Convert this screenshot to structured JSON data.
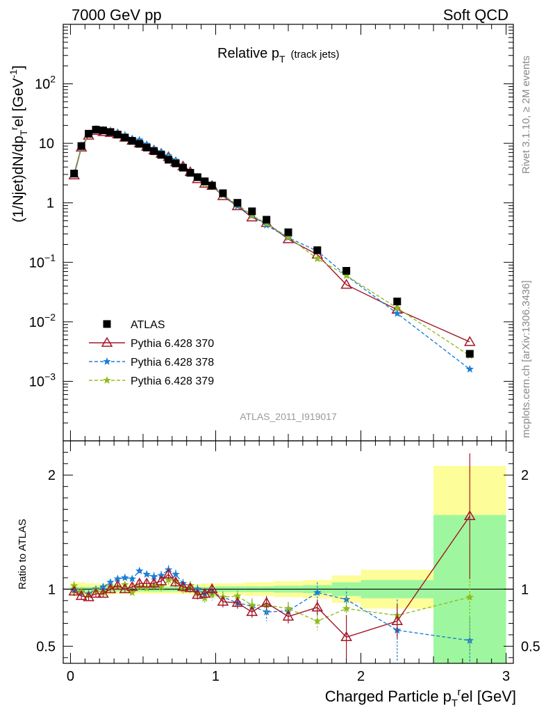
{
  "header": {
    "left": "7000 GeV pp",
    "right": "Soft QCD"
  },
  "side_labels": {
    "rivet": "Rivet 3.1.10, ≥ 2M events",
    "mcplots": "mcplots.cern.ch [arXiv:1306.3436]"
  },
  "analysis_id": "ATLAS_2011_I919017",
  "colors": {
    "atlas": "#000000",
    "p370": "#a31526",
    "p378": "#1c7fd6",
    "p379": "#8fbd1d",
    "band_stat": "#9ef79e",
    "band_tot": "#fdfd99",
    "unity_line": "#000000"
  },
  "chart_data": [
    {
      "type": "scatter",
      "panel": "main",
      "title": "Relative p_T (track jets)",
      "title_main": "Relative p",
      "title_sub": "T",
      "title_note": "(track jets)",
      "ylabel": "(1/Njet)dN/dp_T^rel [GeV^-1]",
      "ylabel_parts": {
        "a": "(1/Njet)dN/dp",
        "b": "T",
        "c": "r",
        "d": "el [GeV",
        "e": "-1",
        "f": "]"
      },
      "yscale": "log",
      "ylim": [
        0.0001,
        1000
      ],
      "xlim": [
        -0.05,
        3.05
      ],
      "ytick_labels": [
        {
          "exp": -3,
          "base": "10",
          "sup": "−3"
        },
        {
          "exp": -2,
          "base": "10",
          "sup": "−2"
        },
        {
          "exp": -1,
          "base": "10",
          "sup": "−1"
        },
        {
          "exp": 0,
          "base": "1",
          "sup": ""
        },
        {
          "exp": 1,
          "base": "10",
          "sup": ""
        },
        {
          "exp": 2,
          "base": "10",
          "sup": "2"
        }
      ],
      "legend_position": "bottom-left",
      "x": [
        0.025,
        0.075,
        0.125,
        0.175,
        0.225,
        0.275,
        0.325,
        0.375,
        0.425,
        0.475,
        0.525,
        0.575,
        0.625,
        0.675,
        0.725,
        0.775,
        0.825,
        0.875,
        0.925,
        0.975,
        1.05,
        1.15,
        1.25,
        1.35,
        1.5,
        1.7,
        1.9,
        2.25,
        2.75
      ],
      "series": [
        {
          "name": "ATLAS",
          "key": "atlas",
          "marker": "square",
          "values": [
            3.1,
            9.0,
            14.5,
            17.0,
            16.5,
            15.5,
            14.0,
            12.5,
            11.0,
            9.8,
            8.5,
            7.4,
            6.4,
            5.3,
            4.6,
            3.9,
            3.2,
            2.7,
            2.3,
            1.95,
            1.45,
            1.0,
            0.72,
            0.52,
            0.32,
            0.16,
            0.072,
            0.022,
            0.0029
          ]
        },
        {
          "name": "Pythia 6.428 370",
          "key": "p370",
          "marker": "triangle",
          "dash": "",
          "values": [
            2.9,
            8.5,
            13.5,
            16.2,
            15.5,
            15.0,
            14.2,
            12.5,
            11.1,
            10.0,
            8.8,
            7.6,
            6.7,
            5.9,
            4.8,
            4.1,
            3.3,
            2.5,
            2.1,
            1.93,
            1.3,
            0.88,
            0.57,
            0.46,
            0.245,
            0.135,
            0.042,
            0.016,
            0.0046
          ]
        },
        {
          "name": "Pythia 6.428 378",
          "key": "p378",
          "marker": "star",
          "dash": "5,3",
          "values": [
            3.0,
            8.7,
            13.9,
            17.0,
            16.8,
            16.5,
            15.2,
            13.8,
            12.0,
            11.4,
            9.6,
            8.2,
            7.2,
            6.2,
            5.2,
            4.1,
            3.3,
            2.7,
            2.2,
            1.9,
            1.35,
            0.88,
            0.61,
            0.42,
            0.26,
            0.155,
            0.06,
            0.0138,
            0.0016
          ]
        },
        {
          "name": "Pythia 6.428 379",
          "key": "p379",
          "marker": "star",
          "dash": "5,3",
          "values": [
            3.2,
            8.8,
            13.8,
            16.8,
            16.0,
            15.8,
            14.2,
            13.0,
            10.6,
            10.0,
            8.6,
            7.6,
            6.5,
            5.7,
            4.9,
            3.9,
            3.3,
            2.6,
            2.1,
            1.85,
            1.35,
            0.94,
            0.62,
            0.45,
            0.265,
            0.115,
            0.06,
            0.017,
            0.0027
          ]
        }
      ]
    },
    {
      "type": "line",
      "panel": "ratio",
      "ylabel": "Ratio to ATLAS",
      "xlabel": "Charged Particle p_T^rel [GeV]",
      "xlabel_parts": {
        "a": "Charged Particle p",
        "b": "T",
        "c": "r",
        "d": "el [GeV]"
      },
      "ylim": [
        0.35,
        2.3
      ],
      "yticks": [
        0.5,
        1,
        2
      ],
      "ytick_labels": [
        "0.5",
        "1",
        "2"
      ],
      "xticks": [
        0,
        1,
        2,
        3
      ],
      "xtick_labels": [
        "0",
        "1",
        "2",
        "3"
      ],
      "bands": [
        {
          "x0": 0.0,
          "x1": 0.1,
          "stat": 0.02,
          "tot": 0.06
        },
        {
          "x0": 0.1,
          "x1": 0.2,
          "stat": 0.02,
          "tot": 0.05
        },
        {
          "x0": 0.2,
          "x1": 0.3,
          "stat": 0.02,
          "tot": 0.05
        },
        {
          "x0": 0.3,
          "x1": 0.4,
          "stat": 0.02,
          "tot": 0.04
        },
        {
          "x0": 0.4,
          "x1": 0.5,
          "stat": 0.02,
          "tot": 0.04
        },
        {
          "x0": 0.5,
          "x1": 0.6,
          "stat": 0.02,
          "tot": 0.04
        },
        {
          "x0": 0.6,
          "x1": 0.7,
          "stat": 0.02,
          "tot": 0.04
        },
        {
          "x0": 0.7,
          "x1": 0.8,
          "stat": 0.02,
          "tot": 0.04
        },
        {
          "x0": 0.8,
          "x1": 0.9,
          "stat": 0.02,
          "tot": 0.045
        },
        {
          "x0": 0.9,
          "x1": 1.0,
          "stat": 0.02,
          "tot": 0.05
        },
        {
          "x0": 1.0,
          "x1": 1.1,
          "stat": 0.025,
          "tot": 0.05
        },
        {
          "x0": 1.1,
          "x1": 1.2,
          "stat": 0.025,
          "tot": 0.05
        },
        {
          "x0": 1.2,
          "x1": 1.3,
          "stat": 0.025,
          "tot": 0.06
        },
        {
          "x0": 1.3,
          "x1": 1.4,
          "stat": 0.025,
          "tot": 0.06
        },
        {
          "x0": 1.4,
          "x1": 1.6,
          "stat": 0.03,
          "tot": 0.07
        },
        {
          "x0": 1.6,
          "x1": 1.8,
          "stat": 0.035,
          "tot": 0.08
        },
        {
          "x0": 1.8,
          "x1": 2.0,
          "stat": 0.06,
          "tot": 0.12
        },
        {
          "x0": 2.0,
          "x1": 2.5,
          "stat": 0.08,
          "tot": 0.17
        },
        {
          "x0": 2.5,
          "x1": 3.0,
          "stat": 0.65,
          "tot": 1.08
        }
      ],
      "x": [
        0.025,
        0.075,
        0.125,
        0.175,
        0.225,
        0.275,
        0.325,
        0.375,
        0.425,
        0.475,
        0.525,
        0.575,
        0.625,
        0.675,
        0.725,
        0.775,
        0.825,
        0.875,
        0.925,
        0.975,
        1.05,
        1.15,
        1.25,
        1.35,
        1.5,
        1.7,
        1.9,
        2.25,
        2.75
      ],
      "series": [
        {
          "name": "Pythia 6.428 370",
          "key": "p370",
          "marker": "triangle",
          "dash": "",
          "values": [
            0.98,
            0.94,
            0.93,
            0.96,
            0.96,
            1.0,
            1.03,
            1.0,
            1.02,
            1.05,
            1.05,
            1.05,
            1.07,
            1.13,
            1.06,
            1.02,
            1.01,
            0.95,
            0.96,
            1.0,
            0.89,
            0.88,
            0.8,
            0.88,
            0.76,
            0.84,
            0.58,
            0.72,
            1.64
          ],
          "errors": [
            0.04,
            0.03,
            0.03,
            0.03,
            0.03,
            0.03,
            0.03,
            0.03,
            0.03,
            0.03,
            0.03,
            0.04,
            0.04,
            0.04,
            0.04,
            0.04,
            0.04,
            0.04,
            0.04,
            0.05,
            0.05,
            0.05,
            0.05,
            0.06,
            0.06,
            0.07,
            0.19,
            0.15,
            0.55
          ]
        },
        {
          "name": "Pythia 6.428 378",
          "key": "p378",
          "marker": "star",
          "dash": "5,3",
          "values": [
            0.99,
            0.97,
            0.96,
            1.0,
            1.02,
            1.06,
            1.09,
            1.1,
            1.09,
            1.16,
            1.13,
            1.11,
            1.12,
            1.17,
            1.13,
            1.05,
            1.03,
            1.0,
            0.96,
            0.97,
            0.93,
            0.88,
            0.85,
            0.8,
            0.81,
            0.97,
            0.91,
            0.64,
            0.55
          ],
          "errors": [
            0.04,
            0.03,
            0.03,
            0.03,
            0.03,
            0.03,
            0.03,
            0.03,
            0.03,
            0.03,
            0.03,
            0.04,
            0.04,
            0.04,
            0.04,
            0.04,
            0.04,
            0.04,
            0.04,
            0.05,
            0.05,
            0.05,
            0.06,
            0.08,
            0.07,
            0.09,
            0.1,
            0.27,
            0.2
          ]
        },
        {
          "name": "Pythia 6.428 379",
          "key": "p379",
          "marker": "star",
          "dash": "5,3",
          "values": [
            1.03,
            0.98,
            0.95,
            0.99,
            0.97,
            1.02,
            1.02,
            1.04,
            0.97,
            1.02,
            1.01,
            1.03,
            1.02,
            1.08,
            1.07,
            1.0,
            1.03,
            0.96,
            0.92,
            0.95,
            0.93,
            0.94,
            0.86,
            0.86,
            0.83,
            0.72,
            0.83,
            0.77,
            0.93
          ],
          "errors": [
            0.04,
            0.03,
            0.03,
            0.03,
            0.03,
            0.03,
            0.03,
            0.03,
            0.03,
            0.03,
            0.03,
            0.04,
            0.04,
            0.04,
            0.04,
            0.04,
            0.04,
            0.04,
            0.04,
            0.05,
            0.05,
            0.05,
            0.06,
            0.07,
            0.06,
            0.08,
            0.1,
            0.1,
            0.45
          ]
        }
      ]
    }
  ]
}
